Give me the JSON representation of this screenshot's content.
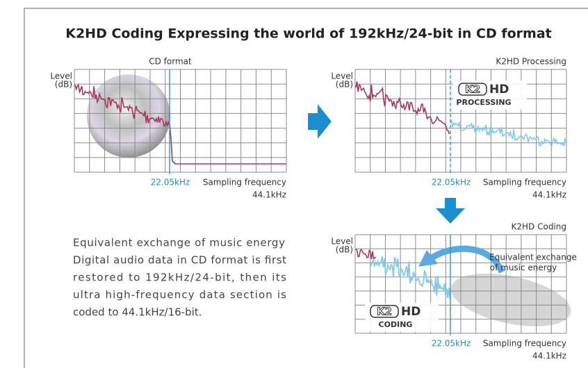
{
  "title": "K2HD Coding Expressing the world of 192kHz/24-bit in CD format",
  "panels": [
    {
      "label": "CD format",
      "y_axis_label": [
        "Level",
        "(dB)"
      ],
      "marker_label": "22.05kHz",
      "x_axis_label": "Sampling frequency",
      "x_axis_end": "44.1kHz"
    },
    {
      "label": "K2HD Processing",
      "y_axis_label": [
        "Level",
        "(dB)"
      ],
      "marker_label": "22.05kHz",
      "x_axis_label": "Sampling frequency",
      "x_axis_end": "44.1kHz"
    },
    {
      "label": "K2HD Coding",
      "y_axis_label": [
        "Level",
        "(dB)"
      ],
      "marker_label": "22.05kHz",
      "x_axis_label": "Sampling frequency",
      "x_axis_end": "44.1kHz"
    }
  ],
  "logos": [
    {
      "mark": "K2",
      "text": "HD",
      "caption": "PROCESSING"
    },
    {
      "mark": "K2",
      "text": "HD",
      "caption": "CODING"
    }
  ],
  "annotation": [
    "Equivalent exchange",
    "of music energy"
  ],
  "description": [
    "Equivalent exchange of music energy",
    "Digital audio data in CD format is first",
    "restored to 192kHz/24-bit, then its",
    "ultra high-frequency data section is",
    "coded to 44.1kHz/16-bit."
  ]
}
